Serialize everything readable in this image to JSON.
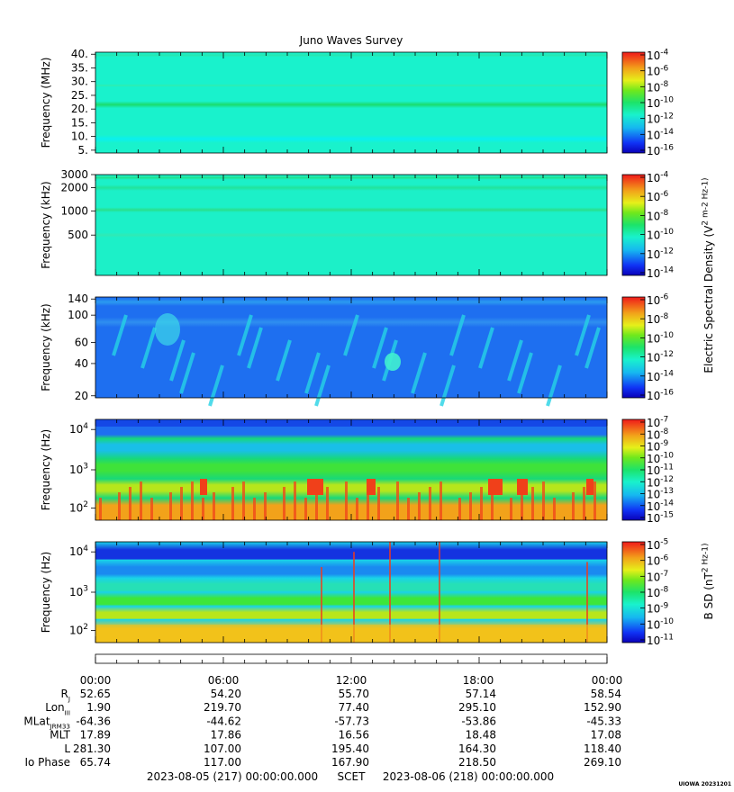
{
  "title": "Juno Waves Survey",
  "panels": [
    {
      "ylabel": "Frequency (MHz)",
      "ticks": [
        "40.",
        "35.",
        "30.",
        "25.",
        "20.",
        "15.",
        "10.",
        "5."
      ],
      "colorbar_ticks": [
        "10^-4",
        "10^-6",
        "10^-8",
        "10^-10",
        "10^-12",
        "10^-14",
        "10^-16"
      ],
      "base_color": "#19f2cc",
      "bands": [
        {
          "pos": 0.03,
          "w": 0.04,
          "color": "#27e6b0"
        },
        {
          "pos": 0.33,
          "w": 0.03,
          "color": "#30ecae"
        },
        {
          "pos": 0.52,
          "w": 0.07,
          "color": "#1bdc6e"
        },
        {
          "pos": 0.86,
          "w": 0.08,
          "color": "#0af0ee"
        }
      ]
    },
    {
      "ylabel": "Frequency (kHz)",
      "ticks": [
        "3000",
        "2000",
        "1000",
        "500"
      ],
      "colorbar_ticks": [
        "10^-4",
        "10^-6",
        "10^-8",
        "10^-10",
        "10^-12",
        "10^-14"
      ],
      "base_color": "#1cf0c8",
      "bands": [
        {
          "pos": 0.03,
          "w": 0.04,
          "color": "#21e08a"
        },
        {
          "pos": 0.13,
          "w": 0.06,
          "color": "#22e39a"
        },
        {
          "pos": 0.35,
          "w": 0.05,
          "color": "#2adf8c"
        },
        {
          "pos": 0.6,
          "w": 0.05,
          "color": "#31e9b4"
        }
      ]
    },
    {
      "ylabel": "Frequency (kHz)",
      "ticks": [
        "140",
        "100",
        "60",
        "40",
        "20"
      ],
      "colorbar_ticks": [
        "10^-6",
        "10^-8",
        "10^-10",
        "10^-12",
        "10^-14",
        "10^-16"
      ],
      "base_color": "#1e6ff0",
      "bands": [
        {
          "pos": 0.05,
          "w": 0.08,
          "color": "#2b9af0"
        },
        {
          "pos": 0.25,
          "w": 0.1,
          "color": "#2f8ff0"
        }
      ]
    },
    {
      "ylabel": "Frequency (Hz)",
      "ticks": [
        "10^4",
        "10^3",
        "10^2"
      ],
      "colorbar_ticks": [
        "10^-7",
        "10^-8",
        "10^-9",
        "10^-10",
        "10^-11",
        "10^-12",
        "10^-13",
        "10^-14",
        "10^-15"
      ],
      "base_color": "#18d87a",
      "bands": [
        {
          "pos": 0.05,
          "w": 0.2,
          "color": "#1e6ff0"
        },
        {
          "pos": 0.25,
          "w": 0.12,
          "color": "#19bfe8"
        },
        {
          "pos": 0.45,
          "w": 0.12,
          "color": "#3fe23a"
        },
        {
          "pos": 0.65,
          "w": 0.12,
          "color": "#b6e61c"
        },
        {
          "pos": 0.85,
          "w": 0.14,
          "color": "#f2a21a"
        }
      ]
    },
    {
      "ylabel": "Frequency (Hz)",
      "ticks": [
        "10^4",
        "10^3",
        "10^2"
      ],
      "colorbar_ticks": [
        "10^-5",
        "10^-6",
        "10^-7",
        "10^-8",
        "10^-9",
        "10^-10",
        "10^-11"
      ],
      "base_color": "#19d3e8",
      "bands": [
        {
          "pos": 0.08,
          "w": 0.18,
          "color": "#1433e0"
        },
        {
          "pos": 0.25,
          "w": 0.14,
          "color": "#1a8af0"
        },
        {
          "pos": 0.42,
          "w": 0.12,
          "color": "#26e0b6"
        },
        {
          "pos": 0.56,
          "w": 0.12,
          "color": "#3ee63a"
        },
        {
          "pos": 0.7,
          "w": 0.12,
          "color": "#b8e61c"
        },
        {
          "pos": 0.86,
          "w": 0.18,
          "color": "#f2c21a"
        }
      ]
    }
  ],
  "colorbar_label_e": "Electric Spectral Density (V^2 m^-2 Hz^-1)",
  "colorbar_label_b": "B SD (nT^2 Hz^-1)",
  "ephemeris": {
    "labels": [
      "R_J",
      "Lon_III",
      "MLat_JRM33",
      "MLT",
      "L",
      "Io Phase"
    ],
    "times": [
      "00:00",
      "06:00",
      "12:00",
      "18:00",
      "00:00"
    ],
    "rows": [
      [
        "52.65",
        "54.20",
        "55.70",
        "57.14",
        "58.54"
      ],
      [
        "1.90",
        "219.70",
        "77.40",
        "295.10",
        "152.90"
      ],
      [
        "-64.36",
        "-44.62",
        "-57.73",
        "-53.86",
        "-45.33"
      ],
      [
        "17.89",
        "17.86",
        "16.56",
        "18.48",
        "17.08"
      ],
      [
        "281.30",
        "107.00",
        "195.40",
        "164.30",
        "118.40"
      ],
      [
        "65.74",
        "117.00",
        "167.90",
        "218.50",
        "269.10"
      ]
    ]
  },
  "footer": {
    "start": "2023-08-05 (217) 00:00:00.000",
    "scet": "SCET",
    "end": "2023-08-06 (218) 00:00:00.000",
    "credit": "UIOWA 20231201"
  },
  "chart_data": {
    "type": "heatmap",
    "title": "Juno Waves Survey",
    "x_range": [
      "2023-08-05 00:00",
      "2023-08-06 00:00"
    ],
    "x_ticks": [
      "00:00",
      "06:00",
      "12:00",
      "18:00",
      "00:00"
    ],
    "panels": [
      {
        "ylabel": "Frequency (MHz)",
        "ylim": [
          3,
          41
        ],
        "colorbar_range": [
          "1e-16",
          "1e-4"
        ]
      },
      {
        "ylabel": "Frequency (kHz)",
        "ylim": [
          150,
          3000
        ],
        "scale": "log",
        "colorbar_range": [
          "1e-14",
          "1e-4"
        ]
      },
      {
        "ylabel": "Frequency (kHz)",
        "ylim": [
          20,
          140
        ],
        "scale": "log",
        "colorbar_range": [
          "1e-16",
          "1e-6"
        ]
      },
      {
        "ylabel": "Frequency (Hz)",
        "ylim": [
          50,
          20000
        ],
        "scale": "log",
        "colorbar_range": [
          "1e-15",
          "1e-7"
        ]
      },
      {
        "ylabel": "Frequency (Hz)",
        "ylim": [
          50,
          20000
        ],
        "scale": "log",
        "colorbar_range": [
          "1e-11",
          "1e-5"
        ]
      }
    ]
  }
}
